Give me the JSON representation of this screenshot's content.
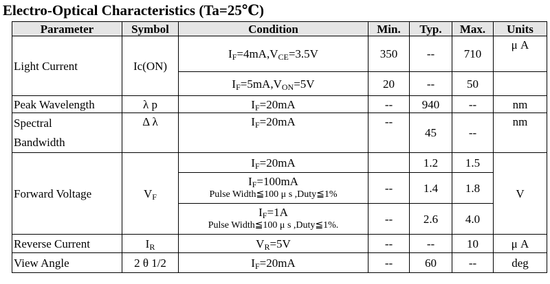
{
  "title": "Electro-Optical Characteristics (Ta=25℃)",
  "headers": [
    "Parameter",
    "Symbol",
    "Condition",
    "Min.",
    "Typ.",
    "Max.",
    "Units"
  ],
  "rows": {
    "light_current": {
      "parameter": "Light Current",
      "symbol": "Ic(ON)",
      "cond1": {
        "pre": "I",
        "sub1": "F",
        "mid": "=4mA,V",
        "sub2": "CE",
        "post": "=3.5V"
      },
      "cond1_min": "350",
      "cond1_typ": "--",
      "cond1_max": "710",
      "unit": "μ A",
      "cond2": {
        "pre": "I",
        "sub1": "F",
        "mid": "=5mA,V",
        "sub2": "ON",
        "post": "=5V"
      },
      "cond2_min": "20",
      "cond2_typ": "--",
      "cond2_max": "50"
    },
    "peak_wavelength": {
      "parameter": "Peak Wavelength",
      "symbol": "λ p",
      "cond": {
        "pre": "I",
        "sub": "F",
        "post": "=20mA"
      },
      "min": "--",
      "typ": "940",
      "max": "--",
      "unit": "nm"
    },
    "spectral_bandwidth": {
      "parameter_line1": "Spectral",
      "parameter_line2": "Bandwidth",
      "symbol": "Δ λ",
      "cond": {
        "pre": "I",
        "sub": "F",
        "post": "=20mA"
      },
      "min": "--",
      "typ": "45",
      "max": "--",
      "unit": "nm"
    },
    "forward_voltage": {
      "parameter": "Forward Voltage",
      "symbol": {
        "pre": "V",
        "sub": "F"
      },
      "unit": "V",
      "c1": {
        "pre": "I",
        "sub": "F",
        "post": "=20mA"
      },
      "c1_typ": "1.2",
      "c1_max": "1.5",
      "c2": {
        "pre": "I",
        "sub": "F",
        "post": "=100mA",
        "note": "Pulse Width≦100 μ s ,Duty≦1%"
      },
      "c2_min": "--",
      "c2_typ": "1.4",
      "c2_max": "1.8",
      "c3": {
        "pre": "I",
        "sub": "F",
        "post": "=1A",
        "note": "Pulse Width≦100 μ s ,Duty≦1%."
      },
      "c3_min": "--",
      "c3_typ": "2.6",
      "c3_max": "4.0"
    },
    "reverse_current": {
      "parameter": "Reverse Current",
      "symbol": {
        "pre": "I",
        "sub": "R"
      },
      "cond": {
        "pre": "V",
        "sub": "R",
        "post": "=5V"
      },
      "min": "--",
      "typ": "--",
      "max": "10",
      "unit": "μ A"
    },
    "view_angle": {
      "parameter": "View Angle",
      "symbol": "2 θ 1/2",
      "cond": {
        "pre": "I",
        "sub": "F",
        "post": "=20mA"
      },
      "min": "--",
      "typ": "60",
      "max": "--",
      "unit": "deg"
    }
  }
}
